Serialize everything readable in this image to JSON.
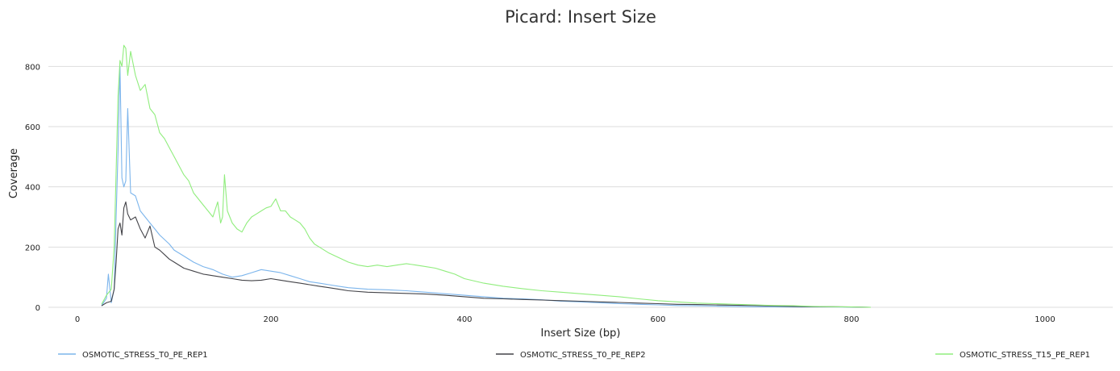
{
  "chart_data": {
    "type": "line",
    "title": "Picard: Insert Size",
    "xlabel": "Insert Size (bp)",
    "ylabel": "Coverage",
    "xlim": [
      -30,
      1070
    ],
    "ylim": [
      0,
      900
    ],
    "x_ticks": [
      0,
      200,
      400,
      600,
      800,
      1000
    ],
    "y_ticks": [
      0,
      200,
      400,
      600,
      800
    ],
    "grid": "horizontal",
    "legend_position": "bottom",
    "series": [
      {
        "name": "OSMOTIC_STRESS_T0_PE_REP1",
        "color": "#7cb5ec",
        "points": [
          [
            25,
            5
          ],
          [
            30,
            30
          ],
          [
            32,
            110
          ],
          [
            35,
            15
          ],
          [
            38,
            60
          ],
          [
            40,
            300
          ],
          [
            42,
            520
          ],
          [
            44,
            800
          ],
          [
            46,
            430
          ],
          [
            48,
            400
          ],
          [
            50,
            420
          ],
          [
            52,
            660
          ],
          [
            55,
            380
          ],
          [
            60,
            370
          ],
          [
            65,
            320
          ],
          [
            70,
            300
          ],
          [
            75,
            280
          ],
          [
            80,
            260
          ],
          [
            85,
            240
          ],
          [
            90,
            225
          ],
          [
            95,
            210
          ],
          [
            100,
            190
          ],
          [
            110,
            170
          ],
          [
            120,
            150
          ],
          [
            130,
            135
          ],
          [
            140,
            125
          ],
          [
            150,
            110
          ],
          [
            160,
            100
          ],
          [
            170,
            105
          ],
          [
            180,
            115
          ],
          [
            190,
            125
          ],
          [
            200,
            120
          ],
          [
            210,
            115
          ],
          [
            220,
            105
          ],
          [
            230,
            95
          ],
          [
            240,
            85
          ],
          [
            250,
            80
          ],
          [
            260,
            75
          ],
          [
            270,
            70
          ],
          [
            280,
            65
          ],
          [
            300,
            60
          ],
          [
            320,
            58
          ],
          [
            340,
            55
          ],
          [
            360,
            50
          ],
          [
            380,
            45
          ],
          [
            400,
            40
          ],
          [
            420,
            35
          ],
          [
            440,
            30
          ],
          [
            460,
            28
          ],
          [
            480,
            25
          ],
          [
            500,
            20
          ],
          [
            520,
            18
          ],
          [
            540,
            15
          ],
          [
            560,
            12
          ],
          [
            580,
            10
          ],
          [
            600,
            8
          ],
          [
            620,
            6
          ],
          [
            640,
            5
          ],
          [
            660,
            4
          ],
          [
            680,
            3
          ],
          [
            700,
            2
          ],
          [
            740,
            1
          ],
          [
            780,
            1
          ],
          [
            820,
            0
          ]
        ]
      },
      {
        "name": "OSMOTIC_STRESS_T0_PE_REP2",
        "color": "#434348",
        "points": [
          [
            25,
            5
          ],
          [
            30,
            15
          ],
          [
            35,
            20
          ],
          [
            38,
            60
          ],
          [
            40,
            150
          ],
          [
            42,
            260
          ],
          [
            44,
            280
          ],
          [
            46,
            240
          ],
          [
            48,
            330
          ],
          [
            50,
            350
          ],
          [
            52,
            310
          ],
          [
            55,
            290
          ],
          [
            60,
            300
          ],
          [
            65,
            260
          ],
          [
            70,
            230
          ],
          [
            75,
            270
          ],
          [
            80,
            200
          ],
          [
            85,
            190
          ],
          [
            90,
            175
          ],
          [
            95,
            160
          ],
          [
            100,
            150
          ],
          [
            110,
            130
          ],
          [
            120,
            120
          ],
          [
            130,
            110
          ],
          [
            140,
            105
          ],
          [
            150,
            100
          ],
          [
            160,
            95
          ],
          [
            170,
            90
          ],
          [
            180,
            88
          ],
          [
            190,
            90
          ],
          [
            200,
            95
          ],
          [
            210,
            90
          ],
          [
            220,
            85
          ],
          [
            230,
            80
          ],
          [
            240,
            75
          ],
          [
            250,
            70
          ],
          [
            260,
            65
          ],
          [
            270,
            60
          ],
          [
            280,
            55
          ],
          [
            300,
            50
          ],
          [
            320,
            48
          ],
          [
            340,
            46
          ],
          [
            360,
            44
          ],
          [
            380,
            40
          ],
          [
            400,
            35
          ],
          [
            420,
            30
          ],
          [
            440,
            28
          ],
          [
            460,
            26
          ],
          [
            480,
            24
          ],
          [
            500,
            22
          ],
          [
            520,
            20
          ],
          [
            540,
            18
          ],
          [
            560,
            16
          ],
          [
            580,
            14
          ],
          [
            600,
            12
          ],
          [
            620,
            10
          ],
          [
            640,
            9
          ],
          [
            660,
            8
          ],
          [
            680,
            7
          ],
          [
            700,
            6
          ],
          [
            720,
            4
          ],
          [
            740,
            3
          ],
          [
            760,
            2
          ],
          [
            780,
            2
          ],
          [
            800,
            1
          ],
          [
            820,
            0
          ]
        ]
      },
      {
        "name": "OSMOTIC_STRESS_T15_PE_REP1",
        "color": "#90ed7d",
        "points": [
          [
            25,
            10
          ],
          [
            30,
            40
          ],
          [
            35,
            60
          ],
          [
            38,
            200
          ],
          [
            40,
            450
          ],
          [
            42,
            700
          ],
          [
            44,
            820
          ],
          [
            46,
            800
          ],
          [
            48,
            870
          ],
          [
            50,
            860
          ],
          [
            52,
            770
          ],
          [
            55,
            850
          ],
          [
            60,
            770
          ],
          [
            65,
            720
          ],
          [
            70,
            740
          ],
          [
            75,
            660
          ],
          [
            80,
            640
          ],
          [
            85,
            580
          ],
          [
            90,
            560
          ],
          [
            95,
            530
          ],
          [
            100,
            500
          ],
          [
            105,
            470
          ],
          [
            110,
            440
          ],
          [
            115,
            420
          ],
          [
            120,
            380
          ],
          [
            125,
            360
          ],
          [
            130,
            340
          ],
          [
            135,
            320
          ],
          [
            140,
            300
          ],
          [
            145,
            350
          ],
          [
            148,
            280
          ],
          [
            150,
            300
          ],
          [
            152,
            440
          ],
          [
            155,
            320
          ],
          [
            160,
            280
          ],
          [
            165,
            260
          ],
          [
            170,
            250
          ],
          [
            175,
            280
          ],
          [
            180,
            300
          ],
          [
            185,
            310
          ],
          [
            190,
            320
          ],
          [
            195,
            330
          ],
          [
            200,
            335
          ],
          [
            205,
            360
          ],
          [
            210,
            320
          ],
          [
            215,
            320
          ],
          [
            220,
            300
          ],
          [
            225,
            290
          ],
          [
            230,
            280
          ],
          [
            235,
            260
          ],
          [
            240,
            230
          ],
          [
            245,
            210
          ],
          [
            250,
            200
          ],
          [
            260,
            180
          ],
          [
            270,
            165
          ],
          [
            280,
            150
          ],
          [
            290,
            140
          ],
          [
            300,
            135
          ],
          [
            310,
            140
          ],
          [
            320,
            135
          ],
          [
            330,
            140
          ],
          [
            340,
            145
          ],
          [
            350,
            140
          ],
          [
            360,
            135
          ],
          [
            370,
            130
          ],
          [
            380,
            120
          ],
          [
            390,
            110
          ],
          [
            400,
            95
          ],
          [
            420,
            80
          ],
          [
            440,
            70
          ],
          [
            460,
            62
          ],
          [
            480,
            55
          ],
          [
            500,
            50
          ],
          [
            520,
            45
          ],
          [
            540,
            40
          ],
          [
            560,
            35
          ],
          [
            580,
            28
          ],
          [
            600,
            22
          ],
          [
            620,
            18
          ],
          [
            640,
            14
          ],
          [
            660,
            12
          ],
          [
            680,
            10
          ],
          [
            700,
            8
          ],
          [
            720,
            6
          ],
          [
            740,
            5
          ],
          [
            760,
            3
          ],
          [
            780,
            2
          ],
          [
            800,
            1
          ],
          [
            820,
            0
          ]
        ]
      }
    ]
  }
}
